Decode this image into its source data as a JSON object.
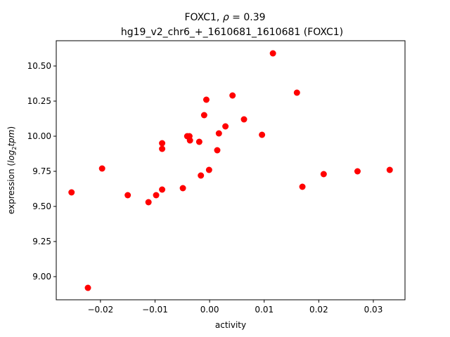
{
  "chart_data": {
    "type": "scatter",
    "title_line1": "FOXC1, ",
    "title_rho": "ρ",
    "title_eq": " = 0.39",
    "title_line2": "hg19_v2_chr6_+_1610681_1610681 (FOXC1)",
    "xlabel": "activity",
    "ylabel_prefix": "expression (",
    "ylabel_log": "log",
    "ylabel_sub": "2",
    "ylabel_tpm": "tpm",
    "ylabel_suffix": ")",
    "xlim": [
      -0.0281,
      0.0358
    ],
    "ylim": [
      8.835,
      10.68
    ],
    "xticks": [
      -0.02,
      -0.01,
      0.0,
      0.01,
      0.02,
      0.03
    ],
    "xtick_labels": [
      "−0.02",
      "−0.01",
      "0.00",
      "0.01",
      "0.02",
      "0.03"
    ],
    "yticks": [
      9.0,
      9.25,
      9.5,
      9.75,
      10.0,
      10.25,
      10.5
    ],
    "ytick_labels": [
      "9.00",
      "9.25",
      "9.50",
      "9.75",
      "10.00",
      "10.25",
      "10.50"
    ],
    "marker_color": "#ff0000",
    "grid": false,
    "points": [
      {
        "x": -0.0253,
        "y": 9.6
      },
      {
        "x": -0.0223,
        "y": 8.92
      },
      {
        "x": -0.0197,
        "y": 9.77
      },
      {
        "x": -0.015,
        "y": 9.58
      },
      {
        "x": -0.0112,
        "y": 9.53
      },
      {
        "x": -0.0098,
        "y": 9.58
      },
      {
        "x": -0.0087,
        "y": 9.95
      },
      {
        "x": -0.0087,
        "y": 9.91
      },
      {
        "x": -0.0087,
        "y": 9.62
      },
      {
        "x": -0.0049,
        "y": 9.63
      },
      {
        "x": -0.0041,
        "y": 10.0
      },
      {
        "x": -0.0037,
        "y": 10.0
      },
      {
        "x": -0.0036,
        "y": 9.97
      },
      {
        "x": -0.0019,
        "y": 9.96
      },
      {
        "x": -0.0016,
        "y": 9.72
      },
      {
        "x": -0.001,
        "y": 10.15
      },
      {
        "x": -0.0006,
        "y": 10.26
      },
      {
        "x": -0.0001,
        "y": 9.76
      },
      {
        "x": 0.0014,
        "y": 9.9
      },
      {
        "x": 0.0017,
        "y": 10.02
      },
      {
        "x": 0.0029,
        "y": 10.07
      },
      {
        "x": 0.0042,
        "y": 10.29
      },
      {
        "x": 0.0063,
        "y": 10.12
      },
      {
        "x": 0.0096,
        "y": 10.01
      },
      {
        "x": 0.0116,
        "y": 10.59
      },
      {
        "x": 0.016,
        "y": 10.31
      },
      {
        "x": 0.017,
        "y": 9.64
      },
      {
        "x": 0.0209,
        "y": 9.73
      },
      {
        "x": 0.0271,
        "y": 9.75
      },
      {
        "x": 0.033,
        "y": 9.76
      }
    ]
  }
}
